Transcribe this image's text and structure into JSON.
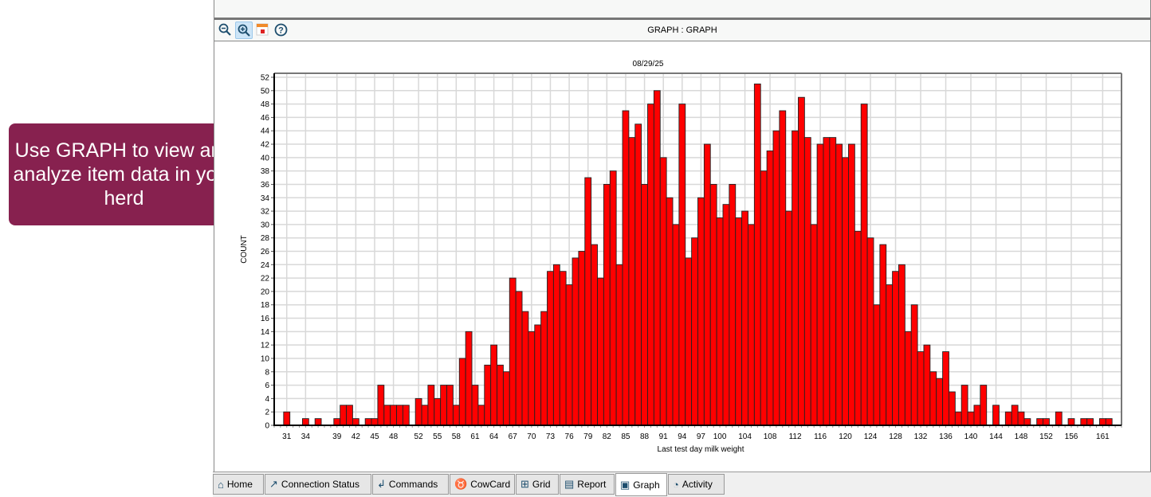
{
  "callout": {
    "text": "Use GRAPH to view and analyze item data in your herd"
  },
  "toolbar": {
    "title": "GRAPH : GRAPH",
    "icons": [
      "zoom-out-icon",
      "zoom-in-icon",
      "export-icon",
      "help-icon"
    ]
  },
  "tabs": [
    {
      "label": "Home",
      "icon": "home-icon"
    },
    {
      "label": "Connection Status",
      "icon": "connection-status-icon"
    },
    {
      "label": "Commands",
      "icon": "commands-icon"
    },
    {
      "label": "CowCard",
      "icon": "cow-icon"
    },
    {
      "label": "Grid",
      "icon": "grid-icon"
    },
    {
      "label": "Report",
      "icon": "report-icon"
    },
    {
      "label": "Graph",
      "icon": "graph-icon",
      "active": true
    },
    {
      "label": "Activity",
      "icon": "activity-icon"
    }
  ],
  "chart_data": {
    "type": "bar",
    "title": "08/29/25",
    "xlabel": "Last test day milk weight",
    "ylabel": "COUNT",
    "ylim": [
      0,
      52
    ],
    "xlim": [
      29,
      164
    ],
    "grid": true,
    "bar_color": "#ff0000",
    "yticks": [
      0,
      2,
      4,
      6,
      8,
      10,
      12,
      14,
      16,
      18,
      20,
      22,
      24,
      26,
      28,
      30,
      32,
      34,
      36,
      38,
      40,
      42,
      44,
      46,
      48,
      50,
      52
    ],
    "xticks": [
      31,
      34,
      39,
      42,
      45,
      48,
      52,
      55,
      58,
      61,
      64,
      67,
      70,
      73,
      76,
      79,
      82,
      85,
      88,
      91,
      94,
      97,
      100,
      104,
      108,
      112,
      116,
      120,
      124,
      128,
      132,
      136,
      140,
      144,
      148,
      152,
      156,
      161
    ],
    "x": [
      31,
      34,
      36,
      39,
      40,
      41,
      42,
      44,
      45,
      46,
      47,
      48,
      49,
      50,
      52,
      53,
      54,
      55,
      56,
      57,
      58,
      59,
      60,
      61,
      62,
      63,
      64,
      65,
      66,
      67,
      68,
      69,
      70,
      71,
      72,
      73,
      74,
      75,
      76,
      77,
      78,
      79,
      80,
      81,
      82,
      83,
      84,
      85,
      86,
      87,
      88,
      89,
      90,
      91,
      92,
      93,
      94,
      95,
      96,
      97,
      98,
      99,
      100,
      101,
      102,
      103,
      104,
      105,
      106,
      107,
      108,
      109,
      110,
      111,
      112,
      113,
      114,
      115,
      116,
      117,
      118,
      119,
      120,
      121,
      122,
      123,
      124,
      125,
      126,
      127,
      128,
      129,
      130,
      131,
      132,
      133,
      134,
      135,
      136,
      137,
      138,
      139,
      140,
      141,
      142,
      144,
      146,
      147,
      148,
      149,
      151,
      152,
      154,
      156,
      158,
      159,
      161,
      162
    ],
    "values": [
      2,
      1,
      1,
      1,
      3,
      3,
      1,
      1,
      1,
      6,
      3,
      3,
      3,
      3,
      4,
      3,
      6,
      4,
      6,
      6,
      3,
      10,
      14,
      6,
      3,
      9,
      12,
      9,
      8,
      22,
      20,
      17,
      14,
      15,
      17,
      23,
      24,
      23,
      21,
      25,
      26,
      37,
      27,
      22,
      36,
      38,
      24,
      47,
      43,
      45,
      36,
      48,
      50,
      40,
      34,
      30,
      48,
      25,
      28,
      34,
      42,
      36,
      31,
      33,
      36,
      31,
      32,
      30,
      51,
      38,
      41,
      44,
      47,
      32,
      44,
      49,
      43,
      30,
      42,
      43,
      43,
      42,
      40,
      42,
      29,
      48,
      28,
      18,
      27,
      21,
      23,
      24,
      14,
      18,
      11,
      12,
      8,
      7,
      11,
      5,
      2,
      6,
      2,
      3,
      6,
      3,
      2,
      3,
      2,
      1,
      1,
      1,
      2,
      1,
      1,
      1,
      1,
      1
    ]
  }
}
